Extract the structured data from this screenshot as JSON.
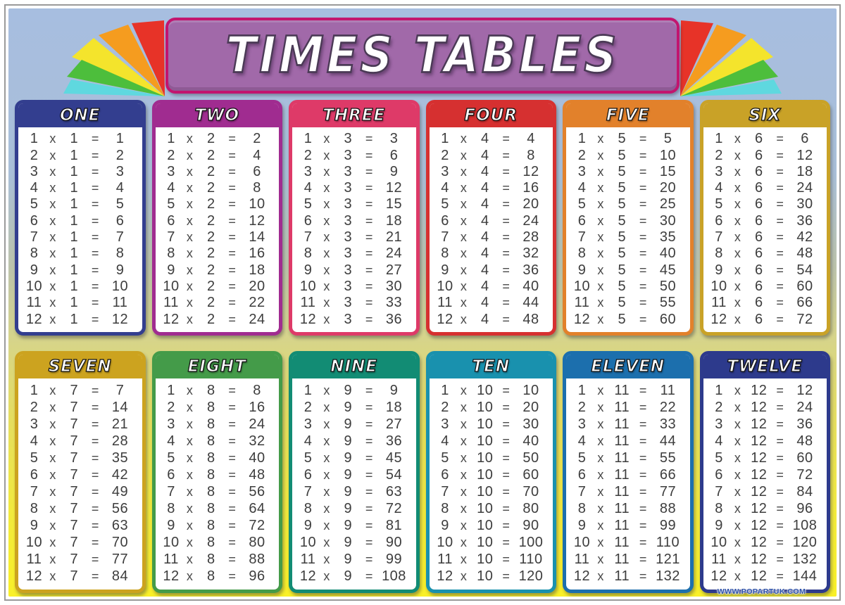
{
  "poster": {
    "title": "TIMES TABLES",
    "watermark": "WWW.POPARTUK.COM",
    "multiply_symbol": "x",
    "equals_symbol": "=",
    "banner": {
      "fill": "#a169a9",
      "border": "#c2156f",
      "title_outline": "#4b3a56"
    },
    "background": {
      "top": "#a7bee0",
      "middle": "#d6d48b",
      "bottom": "#f9f028"
    },
    "fan_colors": [
      "#e73328",
      "#f59c1f",
      "#f4e42c",
      "#4dbe3c",
      "#5fd8df"
    ]
  },
  "tables": [
    {
      "label": "ONE",
      "color": "#333e8f",
      "base": 1,
      "rows": [
        [
          1,
          1,
          1
        ],
        [
          2,
          1,
          2
        ],
        [
          3,
          1,
          3
        ],
        [
          4,
          1,
          4
        ],
        [
          5,
          1,
          5
        ],
        [
          6,
          1,
          6
        ],
        [
          7,
          1,
          7
        ],
        [
          8,
          1,
          8
        ],
        [
          9,
          1,
          9
        ],
        [
          10,
          1,
          10
        ],
        [
          11,
          1,
          11
        ],
        [
          12,
          1,
          12
        ]
      ]
    },
    {
      "label": "TWO",
      "color": "#a02c90",
      "base": 2,
      "rows": [
        [
          1,
          2,
          2
        ],
        [
          2,
          2,
          4
        ],
        [
          3,
          2,
          6
        ],
        [
          4,
          2,
          8
        ],
        [
          5,
          2,
          10
        ],
        [
          6,
          2,
          12
        ],
        [
          7,
          2,
          14
        ],
        [
          8,
          2,
          16
        ],
        [
          9,
          2,
          18
        ],
        [
          10,
          2,
          20
        ],
        [
          11,
          2,
          22
        ],
        [
          12,
          2,
          24
        ]
      ]
    },
    {
      "label": "THREE",
      "color": "#de3a68",
      "base": 3,
      "rows": [
        [
          1,
          3,
          3
        ],
        [
          2,
          3,
          6
        ],
        [
          3,
          3,
          9
        ],
        [
          4,
          3,
          12
        ],
        [
          5,
          3,
          15
        ],
        [
          6,
          3,
          18
        ],
        [
          7,
          3,
          21
        ],
        [
          8,
          3,
          24
        ],
        [
          9,
          3,
          27
        ],
        [
          10,
          3,
          30
        ],
        [
          11,
          3,
          33
        ],
        [
          12,
          3,
          36
        ]
      ]
    },
    {
      "label": "FOUR",
      "color": "#d63030",
      "base": 4,
      "rows": [
        [
          1,
          4,
          4
        ],
        [
          2,
          4,
          8
        ],
        [
          3,
          4,
          12
        ],
        [
          4,
          4,
          16
        ],
        [
          5,
          4,
          20
        ],
        [
          6,
          4,
          24
        ],
        [
          7,
          4,
          28
        ],
        [
          8,
          4,
          32
        ],
        [
          9,
          4,
          36
        ],
        [
          10,
          4,
          40
        ],
        [
          11,
          4,
          44
        ],
        [
          12,
          4,
          48
        ]
      ]
    },
    {
      "label": "FIVE",
      "color": "#e2812b",
      "base": 5,
      "rows": [
        [
          1,
          5,
          5
        ],
        [
          2,
          5,
          10
        ],
        [
          3,
          5,
          15
        ],
        [
          4,
          5,
          20
        ],
        [
          5,
          5,
          25
        ],
        [
          6,
          5,
          30
        ],
        [
          7,
          5,
          35
        ],
        [
          8,
          5,
          40
        ],
        [
          9,
          5,
          45
        ],
        [
          10,
          5,
          50
        ],
        [
          11,
          5,
          55
        ],
        [
          12,
          5,
          60
        ]
      ]
    },
    {
      "label": "SIX",
      "color": "#c9a227",
      "base": 6,
      "rows": [
        [
          1,
          6,
          6
        ],
        [
          2,
          6,
          12
        ],
        [
          3,
          6,
          18
        ],
        [
          4,
          6,
          24
        ],
        [
          5,
          6,
          30
        ],
        [
          6,
          6,
          36
        ],
        [
          7,
          6,
          42
        ],
        [
          8,
          6,
          48
        ],
        [
          9,
          6,
          54
        ],
        [
          10,
          6,
          60
        ],
        [
          11,
          6,
          66
        ],
        [
          12,
          6,
          72
        ]
      ]
    },
    {
      "label": "SEVEN",
      "color": "#cca31f",
      "base": 7,
      "rows": [
        [
          1,
          7,
          7
        ],
        [
          2,
          7,
          14
        ],
        [
          3,
          7,
          21
        ],
        [
          4,
          7,
          28
        ],
        [
          5,
          7,
          35
        ],
        [
          6,
          7,
          42
        ],
        [
          7,
          7,
          49
        ],
        [
          8,
          7,
          56
        ],
        [
          9,
          7,
          63
        ],
        [
          10,
          7,
          70
        ],
        [
          11,
          7,
          77
        ],
        [
          12,
          7,
          84
        ]
      ]
    },
    {
      "label": "EIGHT",
      "color": "#449b49",
      "base": 8,
      "rows": [
        [
          1,
          8,
          8
        ],
        [
          2,
          8,
          16
        ],
        [
          3,
          8,
          24
        ],
        [
          4,
          8,
          32
        ],
        [
          5,
          8,
          40
        ],
        [
          6,
          8,
          48
        ],
        [
          7,
          8,
          56
        ],
        [
          8,
          8,
          64
        ],
        [
          9,
          8,
          72
        ],
        [
          10,
          8,
          80
        ],
        [
          11,
          8,
          88
        ],
        [
          12,
          8,
          96
        ]
      ]
    },
    {
      "label": "NINE",
      "color": "#128c74",
      "base": 9,
      "rows": [
        [
          1,
          9,
          9
        ],
        [
          2,
          9,
          18
        ],
        [
          3,
          9,
          27
        ],
        [
          4,
          9,
          36
        ],
        [
          5,
          9,
          45
        ],
        [
          6,
          9,
          54
        ],
        [
          7,
          9,
          63
        ],
        [
          8,
          9,
          72
        ],
        [
          9,
          9,
          81
        ],
        [
          10,
          9,
          90
        ],
        [
          11,
          9,
          99
        ],
        [
          12,
          9,
          108
        ]
      ]
    },
    {
      "label": "TEN",
      "color": "#1991ae",
      "base": 10,
      "rows": [
        [
          1,
          10,
          10
        ],
        [
          2,
          10,
          20
        ],
        [
          3,
          10,
          30
        ],
        [
          4,
          10,
          40
        ],
        [
          5,
          10,
          50
        ],
        [
          6,
          10,
          60
        ],
        [
          7,
          10,
          70
        ],
        [
          8,
          10,
          80
        ],
        [
          9,
          10,
          90
        ],
        [
          10,
          10,
          100
        ],
        [
          11,
          10,
          110
        ],
        [
          12,
          10,
          120
        ]
      ]
    },
    {
      "label": "ELEVEN",
      "color": "#1c6fad",
      "base": 11,
      "rows": [
        [
          1,
          11,
          11
        ],
        [
          2,
          11,
          22
        ],
        [
          3,
          11,
          33
        ],
        [
          4,
          11,
          44
        ],
        [
          5,
          11,
          55
        ],
        [
          6,
          11,
          66
        ],
        [
          7,
          11,
          77
        ],
        [
          8,
          11,
          88
        ],
        [
          9,
          11,
          99
        ],
        [
          10,
          11,
          110
        ],
        [
          11,
          11,
          121
        ],
        [
          12,
          11,
          132
        ]
      ]
    },
    {
      "label": "TWELVE",
      "color": "#2d3a8c",
      "base": 12,
      "rows": [
        [
          1,
          12,
          12
        ],
        [
          2,
          12,
          24
        ],
        [
          3,
          12,
          36
        ],
        [
          4,
          12,
          48
        ],
        [
          5,
          12,
          60
        ],
        [
          6,
          12,
          72
        ],
        [
          7,
          12,
          84
        ],
        [
          8,
          12,
          96
        ],
        [
          9,
          12,
          108
        ],
        [
          10,
          12,
          120
        ],
        [
          11,
          12,
          132
        ],
        [
          12,
          12,
          144
        ]
      ]
    }
  ]
}
